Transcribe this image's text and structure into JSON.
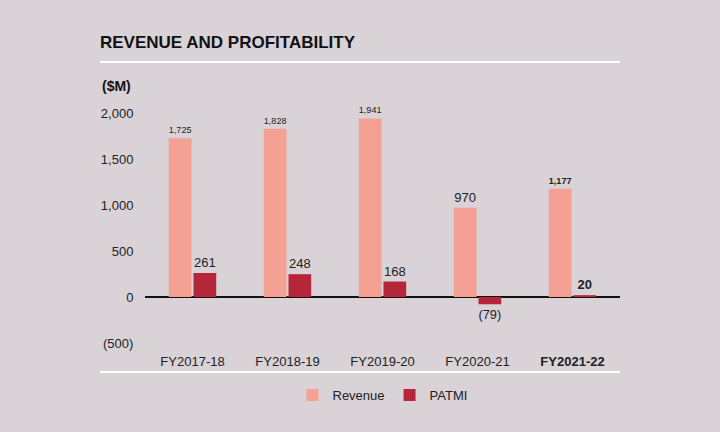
{
  "chart_data": {
    "type": "bar",
    "title": "REVENUE AND PROFITABILITY",
    "ylabel": "($M)",
    "categories": [
      "FY2017-18",
      "FY2018-19",
      "FY2019-20",
      "FY2020-21",
      "FY2021-22"
    ],
    "series": [
      {
        "name": "Revenue",
        "color": "#f4a193",
        "values": [
          1725,
          1828,
          1941,
          970,
          1177
        ],
        "value_labels": [
          "1,725",
          "1,828",
          "1,941",
          "970",
          "1,177"
        ]
      },
      {
        "name": "PATMI",
        "color": "#b5263a",
        "values": [
          261,
          248,
          168,
          -79,
          20
        ],
        "value_labels": [
          "261",
          "248",
          "168",
          "(79)",
          "20"
        ]
      }
    ],
    "ylim": [
      -500,
      2000
    ],
    "yticks": [
      {
        "value": -500,
        "label": "(500)"
      },
      0,
      500,
      {
        "value": 1000,
        "label": "1,000"
      },
      {
        "value": 1500,
        "label": "1,500"
      },
      {
        "value": 2000,
        "label": "2,000"
      }
    ],
    "grid": false,
    "data_labels": true,
    "legend": "bottom"
  }
}
